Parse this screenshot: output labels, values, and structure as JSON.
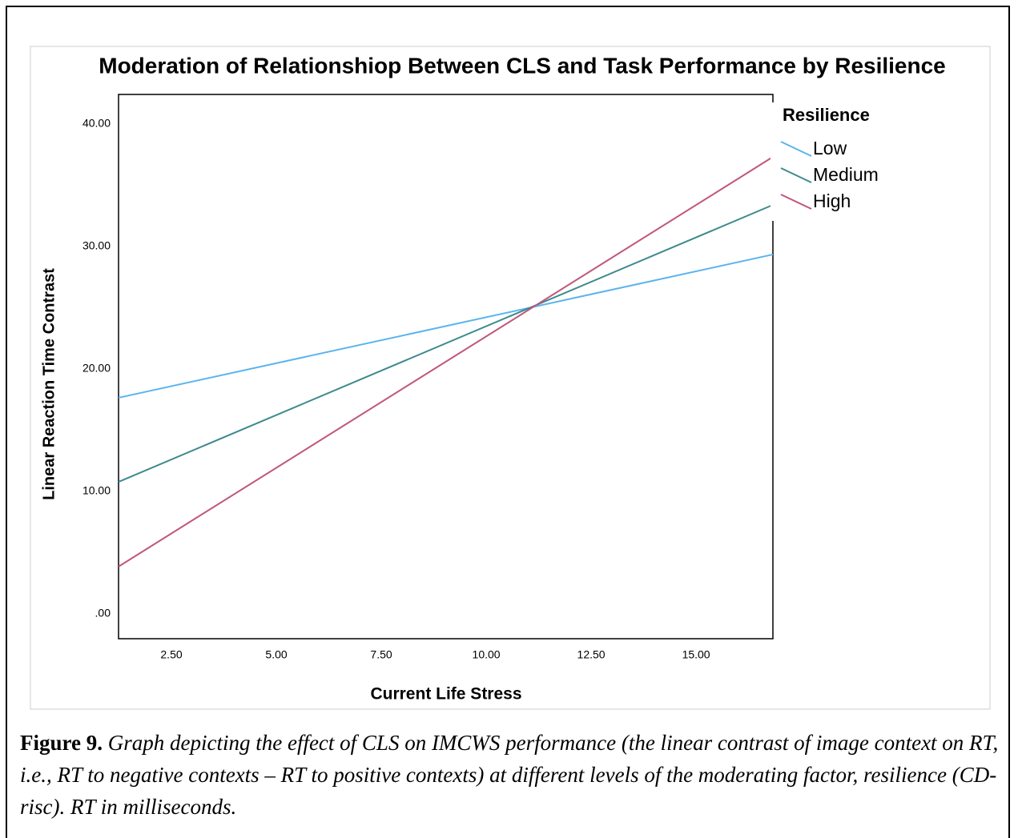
{
  "chart_data": {
    "type": "line",
    "title": "Moderation of Relationshiop Between CLS and Task Performance by Resilience",
    "x_label": "Current Life Stress",
    "y_label": "Linear Reaction Time Contrast",
    "legend_title": "Resilience",
    "legend": "right",
    "x": [
      1.24,
      16.83
    ],
    "series": [
      {
        "name": "Low",
        "color": "#5ab4ee",
        "values": [
          17.65,
          29.35
        ]
      },
      {
        "name": "Medium",
        "color": "#3d8a8d",
        "values": [
          10.78,
          33.4
        ]
      },
      {
        "name": "High",
        "color": "#c1567d",
        "values": [
          3.86,
          37.32
        ]
      }
    ],
    "xlim": [
      1.24,
      16.83
    ],
    "ylim": [
      -2.03,
      42.42
    ],
    "xticks": [
      {
        "value": 2.5,
        "label": "2.50"
      },
      {
        "value": 5,
        "label": "5.00"
      },
      {
        "value": 7.5,
        "label": "7.50"
      },
      {
        "value": 10,
        "label": "10.00"
      },
      {
        "value": 12.5,
        "label": "12.50"
      },
      {
        "value": 15,
        "label": "15.00"
      }
    ],
    "yticks": [
      {
        "value": 0,
        "label": ".00"
      },
      {
        "value": 10,
        "label": "10.00"
      },
      {
        "value": 20,
        "label": "20.00"
      },
      {
        "value": 30,
        "label": "30.00"
      },
      {
        "value": 40,
        "label": "40.00"
      }
    ],
    "grid": false
  },
  "caption": {
    "label": "Figure 9.",
    "text": "Graph depicting the effect of CLS on IMCWS performance (the linear contrast of image context on RT,  i.e., RT to negative contexts – RT to positive contexts) at different levels  of the moderating factor, resilience (CD-risc). RT in milliseconds."
  }
}
